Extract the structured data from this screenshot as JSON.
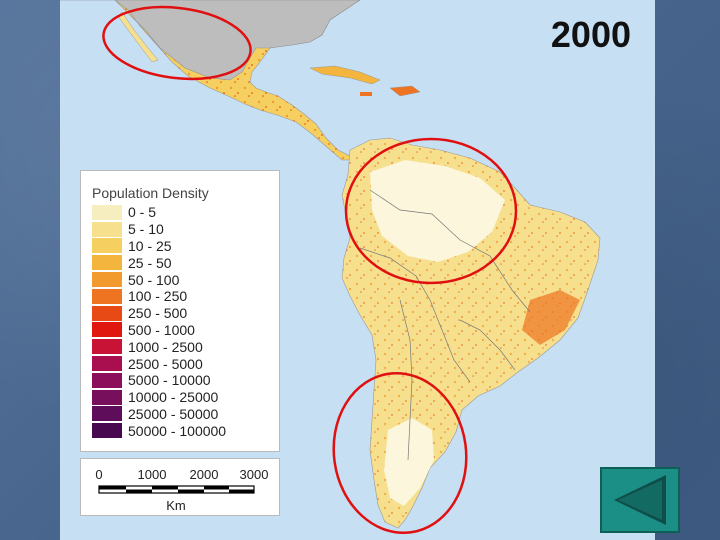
{
  "map": {
    "year_label": "2000",
    "legend_title": "Population Density",
    "legend": [
      {
        "label": "0 - 5",
        "color": "#f7eec0"
      },
      {
        "label": "5 - 10",
        "color": "#f6e08e"
      },
      {
        "label": "10 - 25",
        "color": "#f5cf5f"
      },
      {
        "label": "25 - 50",
        "color": "#f3b53d"
      },
      {
        "label": "50 - 100",
        "color": "#f29a2e"
      },
      {
        "label": "100 - 250",
        "color": "#ee7421"
      },
      {
        "label": "250 - 500",
        "color": "#e84a16"
      },
      {
        "label": "500 - 1000",
        "color": "#e0170f"
      },
      {
        "label": "1000 - 2500",
        "color": "#c81236"
      },
      {
        "label": "2500 - 5000",
        "color": "#a90f4e"
      },
      {
        "label": "5000 - 10000",
        "color": "#8c0f5b"
      },
      {
        "label": "10000 - 25000",
        "color": "#780f5d"
      },
      {
        "label": "25000 - 50000",
        "color": "#5e0d5a"
      },
      {
        "label": "50000 - 100000",
        "color": "#48084f"
      }
    ],
    "scale": {
      "ticks": [
        "0",
        "1000",
        "2000",
        "3000"
      ],
      "unit": "Km"
    },
    "annotation_color": "#e01010"
  },
  "nav": {
    "icon": "back-arrow-icon",
    "color": "#1b8f86"
  }
}
